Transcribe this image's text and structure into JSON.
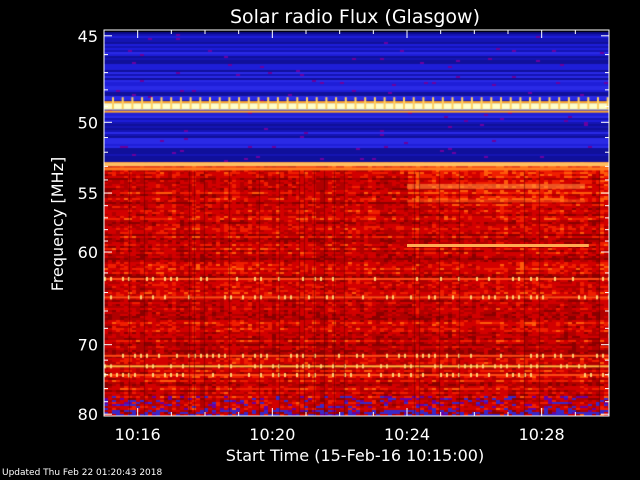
{
  "chart_data": {
    "type": "heatmap",
    "title": "Solar radio Flux (Glasgow)",
    "xlabel": "Start Time (15-Feb-16 10:15:00)",
    "ylabel": "Frequency [MHz]",
    "x_tick_labels": [
      "10:16",
      "10:20",
      "10:24",
      "10:28"
    ],
    "x_tick_minutes": [
      1,
      5,
      9,
      13
    ],
    "x_range_minutes": [
      0,
      15
    ],
    "y_tick_labels": [
      "45",
      "50",
      "55",
      "60",
      "70",
      "80"
    ],
    "y_tick_values": [
      45,
      50,
      55,
      60,
      70,
      80
    ],
    "y_minor_ticks": [
      46,
      47,
      48,
      49,
      51,
      52,
      53,
      54,
      56,
      57,
      58,
      59,
      62,
      64,
      66,
      68,
      72,
      74,
      76,
      78
    ],
    "y_range_mhz": [
      44.7,
      80.3
    ],
    "y_scale": "reciprocal",
    "colormap": [
      "#000000",
      "#14008c",
      "#1e1ee6",
      "#8c0000",
      "#c80000",
      "#f01e00",
      "#ff6e14",
      "#ffc850",
      "#ffffc8"
    ],
    "features": {
      "low_flux_band_mhz": [
        44.8,
        52.6
      ],
      "bright_band_mhz": [
        48.8,
        49.2
      ],
      "bright_band2_mhz": [
        52.7,
        53.0
      ],
      "step_start_minute": 9.0,
      "bright_line_mhz": 59.4,
      "bright_line_minutes": [
        9.0,
        14.4
      ],
      "bright_row_mhz": [
        62.5,
        64.4,
        71.3,
        72.7,
        73.9
      ]
    }
  },
  "footer_text": "Updated Thu Feb 22 01:20:43 2018",
  "colors": {
    "background": "#000000",
    "axis": "#ffffff",
    "text": "#ffffff"
  }
}
